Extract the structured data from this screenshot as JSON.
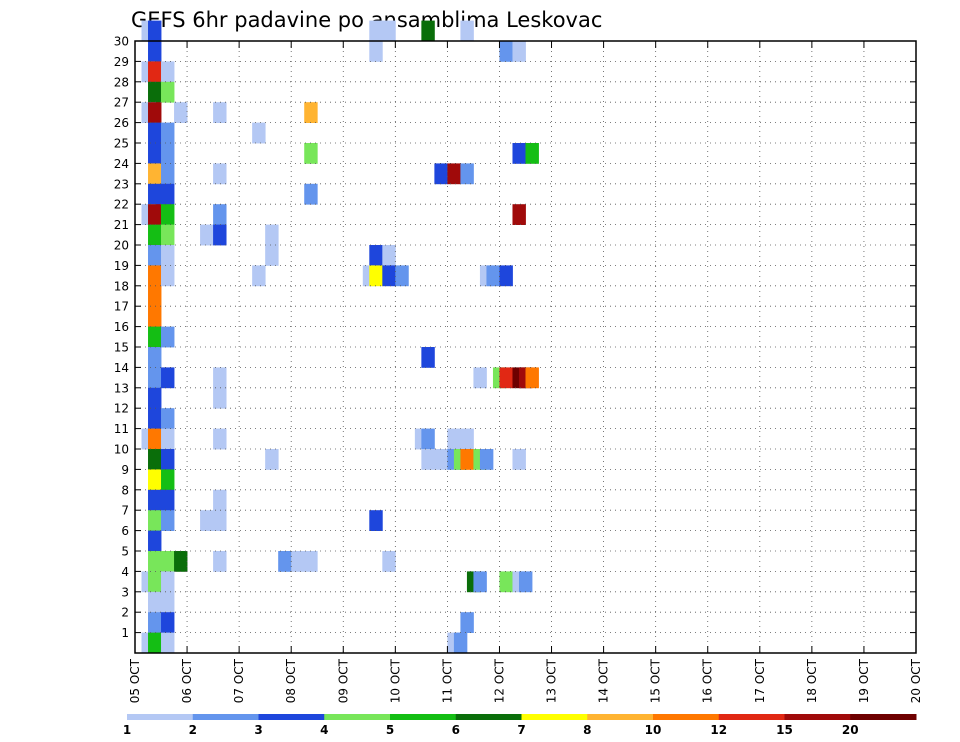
{
  "chart_data": {
    "type": "heatmap",
    "title": "GEFS 6hr padavine po ansamblima Leskovac",
    "x_tick_labels": [
      "05 OCT",
      "06 OCT",
      "07 OCT",
      "08 OCT",
      "09 OCT",
      "10 OCT",
      "11 OCT",
      "12 OCT",
      "13 OCT",
      "14 OCT",
      "15 OCT",
      "16 OCT",
      "17 OCT",
      "18 OCT",
      "19 OCT",
      "20 OCT"
    ],
    "y_tick_labels": [
      "1",
      "2",
      "3",
      "4",
      "5",
      "6",
      "7",
      "8",
      "9",
      "10",
      "11",
      "12",
      "13",
      "14",
      "15",
      "16",
      "17",
      "18",
      "19",
      "20",
      "21",
      "22",
      "23",
      "24",
      "25",
      "26",
      "27",
      "28",
      "29",
      "30"
    ],
    "xlim": [
      "05 OCT 00Z",
      "20 OCT 00Z"
    ],
    "ylim": [
      0,
      30
    ],
    "time_step_hours": 6,
    "grid": true,
    "colorbar": {
      "labels": [
        "1",
        "2",
        "3",
        "4",
        "5",
        "6",
        "7",
        "8",
        "10",
        "12",
        "15",
        "20"
      ],
      "colors": [
        "#b4c8f4",
        "#6495ed",
        "#1e46dc",
        "#78e65a",
        "#14be14",
        "#0a6e0a",
        "#ffff00",
        "#ffb432",
        "#ff7800",
        "#e12814",
        "#a00a0a",
        "#6e0000"
      ]
    },
    "cells": [
      [
        30,
        0.5,
        0
      ],
      [
        30,
        1,
        2
      ],
      [
        30,
        18,
        0
      ],
      [
        30,
        19,
        0
      ],
      [
        30,
        22,
        5
      ],
      [
        30,
        25,
        0
      ],
      [
        29,
        1,
        2
      ],
      [
        29,
        18,
        0
      ],
      [
        29,
        28,
        1
      ],
      [
        29,
        29,
        0
      ],
      [
        28,
        0.5,
        0
      ],
      [
        28,
        1,
        9
      ],
      [
        28,
        2,
        0
      ],
      [
        27,
        1,
        5
      ],
      [
        27,
        2,
        3
      ],
      [
        26,
        0.5,
        0
      ],
      [
        26,
        1,
        10
      ],
      [
        26,
        3,
        0
      ],
      [
        26,
        6,
        0
      ],
      [
        26,
        13,
        7
      ],
      [
        25,
        1,
        2
      ],
      [
        25,
        2,
        1
      ],
      [
        25,
        9,
        0
      ],
      [
        24,
        1,
        2
      ],
      [
        24,
        2,
        1
      ],
      [
        24,
        13,
        3
      ],
      [
        24,
        29,
        2
      ],
      [
        24,
        30,
        4
      ],
      [
        23,
        1,
        7
      ],
      [
        23,
        2,
        1
      ],
      [
        23,
        6,
        0
      ],
      [
        23,
        23,
        2
      ],
      [
        23,
        24,
        10
      ],
      [
        23,
        25,
        1
      ],
      [
        22,
        1,
        2
      ],
      [
        22,
        2,
        2
      ],
      [
        22,
        13,
        1
      ],
      [
        21,
        0.5,
        0
      ],
      [
        21,
        1,
        10
      ],
      [
        21,
        2,
        4
      ],
      [
        21,
        6,
        1
      ],
      [
        21,
        29,
        10
      ],
      [
        20,
        1,
        4
      ],
      [
        20,
        2,
        3
      ],
      [
        20,
        5,
        0
      ],
      [
        20,
        6,
        2
      ],
      [
        20,
        10,
        0
      ],
      [
        19,
        1,
        1
      ],
      [
        19,
        2,
        0
      ],
      [
        19,
        10,
        0
      ],
      [
        19,
        18,
        2
      ],
      [
        19,
        19,
        0
      ],
      [
        18,
        1,
        8
      ],
      [
        18,
        2,
        0
      ],
      [
        18,
        9,
        0
      ],
      [
        18,
        17.5,
        0
      ],
      [
        18,
        18,
        6
      ],
      [
        18,
        19,
        2
      ],
      [
        18,
        20,
        1
      ],
      [
        18,
        26.5,
        0
      ],
      [
        18,
        27,
        1
      ],
      [
        18,
        28,
        2
      ],
      [
        17,
        1,
        8
      ],
      [
        16,
        1,
        8
      ],
      [
        15,
        1,
        4
      ],
      [
        15,
        2,
        1
      ],
      [
        14,
        1,
        1
      ],
      [
        14,
        22,
        2
      ],
      [
        13,
        1,
        1
      ],
      [
        13,
        2,
        2
      ],
      [
        13,
        6,
        0
      ],
      [
        13,
        26,
        0
      ],
      [
        13,
        27.5,
        3
      ],
      [
        13,
        28,
        9
      ],
      [
        13,
        29,
        11
      ],
      [
        13,
        29.5,
        10
      ],
      [
        13,
        30,
        8
      ],
      [
        12,
        1,
        2
      ],
      [
        12,
        6,
        0
      ],
      [
        11,
        1,
        2
      ],
      [
        11,
        2,
        1
      ],
      [
        10,
        0.5,
        0
      ],
      [
        10,
        1,
        8
      ],
      [
        10,
        2,
        0
      ],
      [
        10,
        6,
        0
      ],
      [
        10,
        21.5,
        0
      ],
      [
        10,
        22,
        1
      ],
      [
        10,
        24,
        0
      ],
      [
        10,
        25,
        0
      ],
      [
        9,
        1,
        5
      ],
      [
        9,
        2,
        2
      ],
      [
        9,
        10,
        0
      ],
      [
        9,
        22,
        0
      ],
      [
        9,
        23,
        0
      ],
      [
        9,
        24,
        1
      ],
      [
        9,
        24.5,
        3
      ],
      [
        9,
        25,
        8
      ],
      [
        9,
        26,
        3
      ],
      [
        9,
        26.5,
        1
      ],
      [
        9,
        29,
        0
      ],
      [
        8,
        1,
        6
      ],
      [
        8,
        2,
        4
      ],
      [
        7,
        1,
        2
      ],
      [
        7,
        2,
        2
      ],
      [
        7,
        6,
        0
      ],
      [
        6,
        1,
        3
      ],
      [
        6,
        2,
        1
      ],
      [
        6,
        5,
        0
      ],
      [
        6,
        6,
        0
      ],
      [
        6,
        18,
        2
      ],
      [
        5,
        1,
        2
      ],
      [
        4,
        1,
        3
      ],
      [
        4,
        2,
        3
      ],
      [
        4,
        3,
        5
      ],
      [
        4,
        6,
        0
      ],
      [
        4,
        11,
        1
      ],
      [
        4,
        12,
        0
      ],
      [
        4,
        13,
        0
      ],
      [
        4,
        19,
        0
      ],
      [
        3,
        0.5,
        0
      ],
      [
        3,
        1,
        3
      ],
      [
        3,
        2,
        0
      ],
      [
        3,
        25.5,
        5
      ],
      [
        3,
        26,
        1
      ],
      [
        3,
        28,
        3
      ],
      [
        3,
        29,
        0
      ],
      [
        3,
        29.5,
        1
      ],
      [
        2,
        1,
        0
      ],
      [
        2,
        2,
        0
      ],
      [
        1,
        1,
        1
      ],
      [
        1,
        2,
        2
      ],
      [
        1,
        25,
        1
      ],
      [
        0,
        0.5,
        0
      ],
      [
        0,
        1,
        4
      ],
      [
        0,
        2,
        0
      ],
      [
        0,
        24,
        0
      ],
      [
        0,
        24.5,
        1
      ]
    ]
  }
}
